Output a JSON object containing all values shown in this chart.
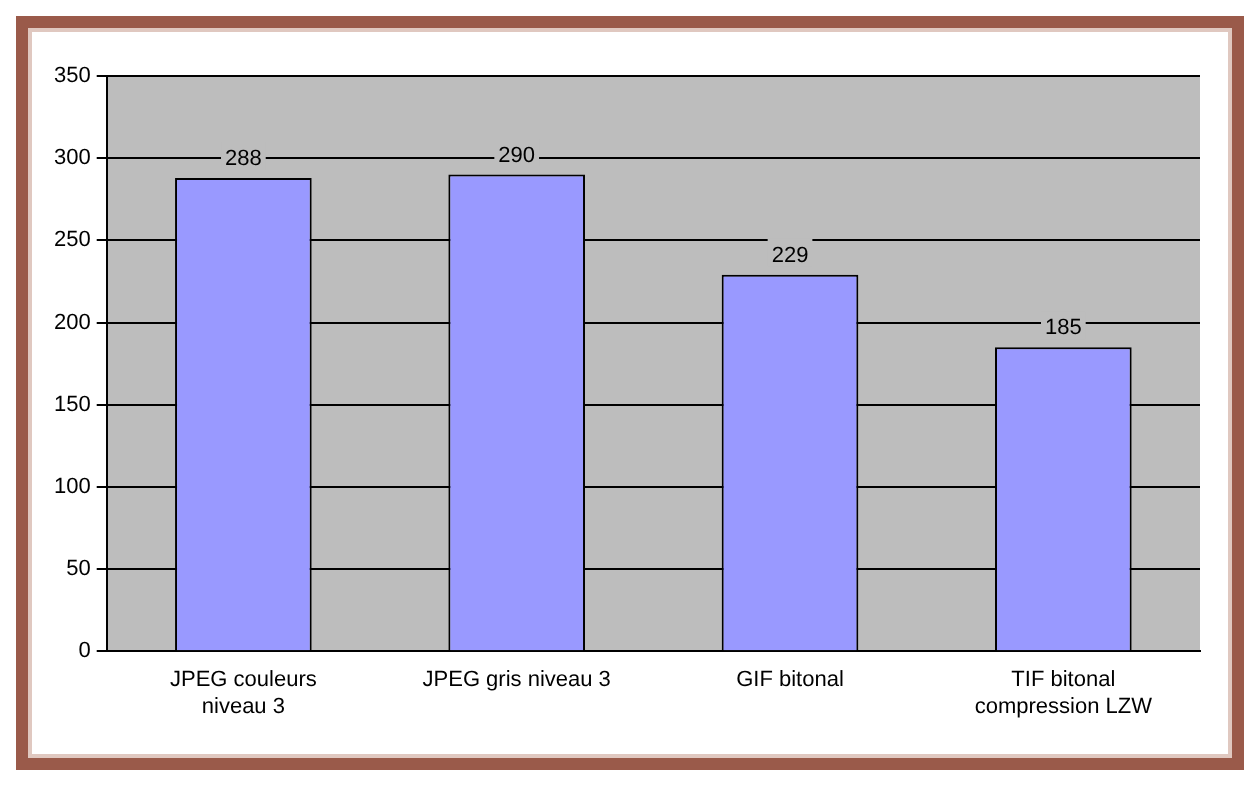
{
  "chart_data": {
    "type": "bar",
    "categories": [
      "JPEG couleurs niveau 3",
      "JPEG gris niveau 3",
      "GIF bitonal",
      "TIF bitonal compression LZW"
    ],
    "values": [
      288,
      290,
      229,
      185
    ],
    "color": "#9999ff",
    "ylim": [
      0,
      350
    ],
    "yticks": [
      0,
      50,
      100,
      150,
      200,
      250,
      300,
      350
    ],
    "grid": "y",
    "data_labels": true,
    "legend": false
  }
}
